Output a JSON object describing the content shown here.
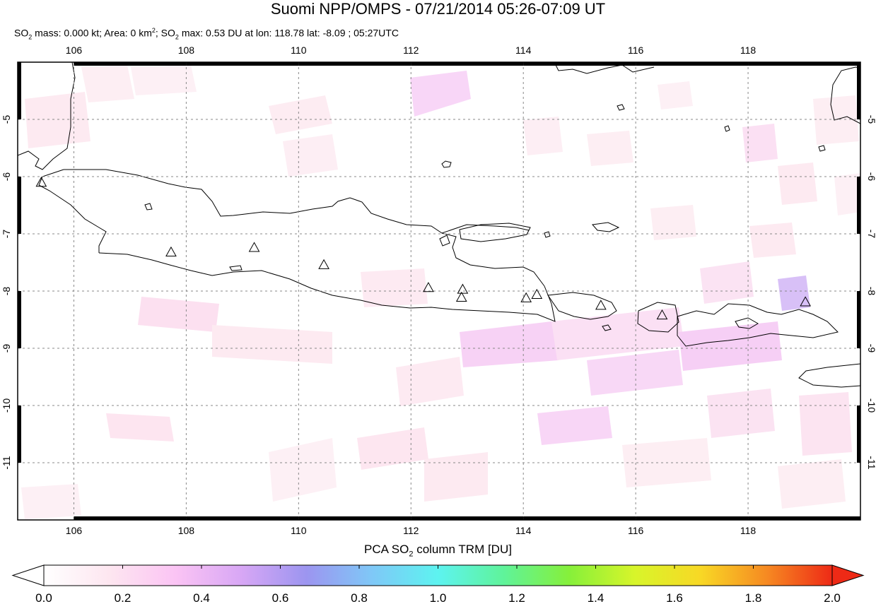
{
  "header": {
    "title": "Suomi NPP/OMPS - 07/21/2014 05:26-07:09 UT",
    "stats": {
      "mass_label": "SO",
      "mass_sub": "2",
      "mass_text": " mass: 0.000 kt; Area: 0 km",
      "area_sup": "2",
      "max_label": "; SO",
      "max_sub": "2",
      "max_text": " max: 0.53 DU at lon: 118.78 lat: -8.09 ; 05:27UTC"
    }
  },
  "map": {
    "lon_ticks": [
      "106",
      "108",
      "110",
      "112",
      "114",
      "116",
      "118"
    ],
    "lat_ticks": [
      "-5",
      "-6",
      "-7",
      "-8",
      "-9",
      "-10",
      "-11"
    ],
    "extent": {
      "lon_min": 105.0,
      "lon_max": 120.0,
      "lat_min": -12.0,
      "lat_max": -4.0
    },
    "volcano_marker": "triangle-outline",
    "volcanoes": [
      {
        "lon": 105.42,
        "lat": -6.1
      },
      {
        "lon": 107.73,
        "lat": -7.32
      },
      {
        "lon": 109.21,
        "lat": -7.24
      },
      {
        "lon": 110.45,
        "lat": -7.54
      },
      {
        "lon": 112.31,
        "lat": -7.94
      },
      {
        "lon": 112.92,
        "lat": -7.97
      },
      {
        "lon": 112.9,
        "lat": -8.11
      },
      {
        "lon": 114.05,
        "lat": -8.12
      },
      {
        "lon": 114.24,
        "lat": -8.06
      },
      {
        "lon": 115.38,
        "lat": -8.25
      },
      {
        "lon": 116.47,
        "lat": -8.42
      },
      {
        "lon": 119.02,
        "lat": -8.19
      }
    ],
    "so2_max_pixel": {
      "lon": 118.78,
      "lat": -8.09,
      "value_du": 0.53
    }
  },
  "colorbar": {
    "title_pre": "PCA SO",
    "title_sub": "2",
    "title_post": " column TRM [DU]",
    "labels": [
      "0.0",
      "0.2",
      "0.4",
      "0.6",
      "0.8",
      "1.0",
      "1.2",
      "1.4",
      "1.6",
      "1.8",
      "2.0"
    ],
    "range": [
      0.0,
      2.0
    ],
    "colors": [
      "#ffffff",
      "#fde6f0",
      "#fbc4f4",
      "#d8a7f5",
      "#9c95f0",
      "#7fc8f7",
      "#5df3f0",
      "#5ff39a",
      "#86f03a",
      "#d8f52a",
      "#f8d825",
      "#f68a22",
      "#ee2a16"
    ],
    "under_color": "#ffffff",
    "over_color": "#ee2a16"
  }
}
